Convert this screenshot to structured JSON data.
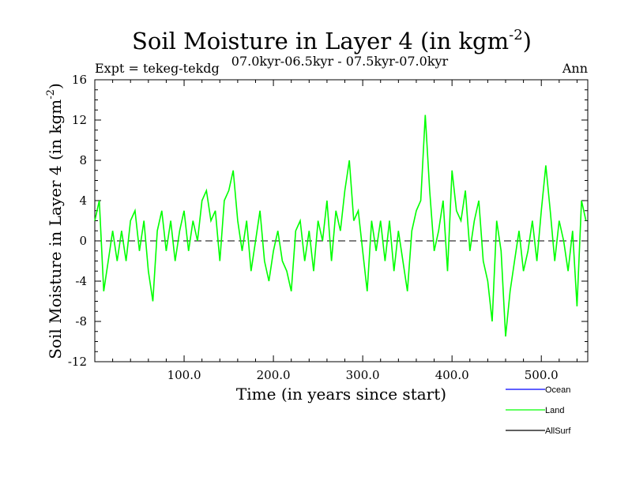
{
  "chart_data": {
    "type": "line",
    "title": "Soil Moisture in Layer 4 (in kgm",
    "title_sup": "-2",
    "title_end": ")",
    "subtitle": "07.0kyr-06.5kyr - 07.5kyr-07.0kyr",
    "left_label": "Expt = tekeg-tekdg",
    "right_label": "Ann",
    "xlabel": "Time (in years since start)",
    "ylabel": "Soil Moisture in Layer 4 (in kgm",
    "ylabel_sup": "-2",
    "ylabel_end": ")",
    "xlim": [
      0,
      552
    ],
    "ylim": [
      -12,
      16
    ],
    "xticks": [
      100,
      200,
      300,
      400,
      500
    ],
    "xtick_labels": [
      "100.0",
      "200.0",
      "300.0",
      "400.0",
      "500.0"
    ],
    "yticks": [
      -12,
      -8,
      -4,
      0,
      4,
      8,
      12,
      16
    ],
    "ytick_labels": [
      "-12",
      "-8",
      "-4",
      "0",
      "4",
      "8",
      "12",
      "16"
    ],
    "zero_line": "dashed",
    "legend": [
      {
        "name": "Ocean",
        "color": "#0000ff"
      },
      {
        "name": "Land",
        "color": "#00ff00"
      },
      {
        "name": "AllSurf",
        "color": "#000000"
      }
    ],
    "legend_position": "bottom-right",
    "series": [
      {
        "name": "Land",
        "color": "#00ff00",
        "x_step": 5,
        "values": [
          2,
          4,
          -5,
          -2,
          1,
          -2,
          1,
          -2,
          2,
          3,
          -1,
          2,
          -3,
          -6,
          1,
          3,
          -1,
          2,
          -2,
          1,
          3,
          -1,
          2,
          0,
          4,
          5,
          2,
          3,
          -2,
          4,
          5,
          7,
          2,
          -1,
          2,
          -3,
          0,
          3,
          -2,
          -4,
          -1,
          1,
          -2,
          -3,
          -5,
          1,
          2,
          -2,
          1,
          -3,
          2,
          0,
          4,
          -2,
          3,
          1,
          5,
          8,
          2,
          3,
          -1,
          -5,
          2,
          -1,
          2,
          -2,
          2,
          -3,
          1,
          -2,
          -5,
          1,
          3,
          4,
          12.5,
          5,
          -1,
          1,
          4,
          -3,
          7,
          3,
          2,
          5,
          -1,
          2,
          4,
          -2,
          -4,
          -8,
          2,
          -1,
          -9.5,
          -5,
          -2,
          1,
          -3,
          -1,
          2,
          -2,
          3,
          7.5,
          3,
          -2,
          2,
          0,
          -3,
          1,
          -6.5,
          4,
          2
        ]
      }
    ]
  }
}
